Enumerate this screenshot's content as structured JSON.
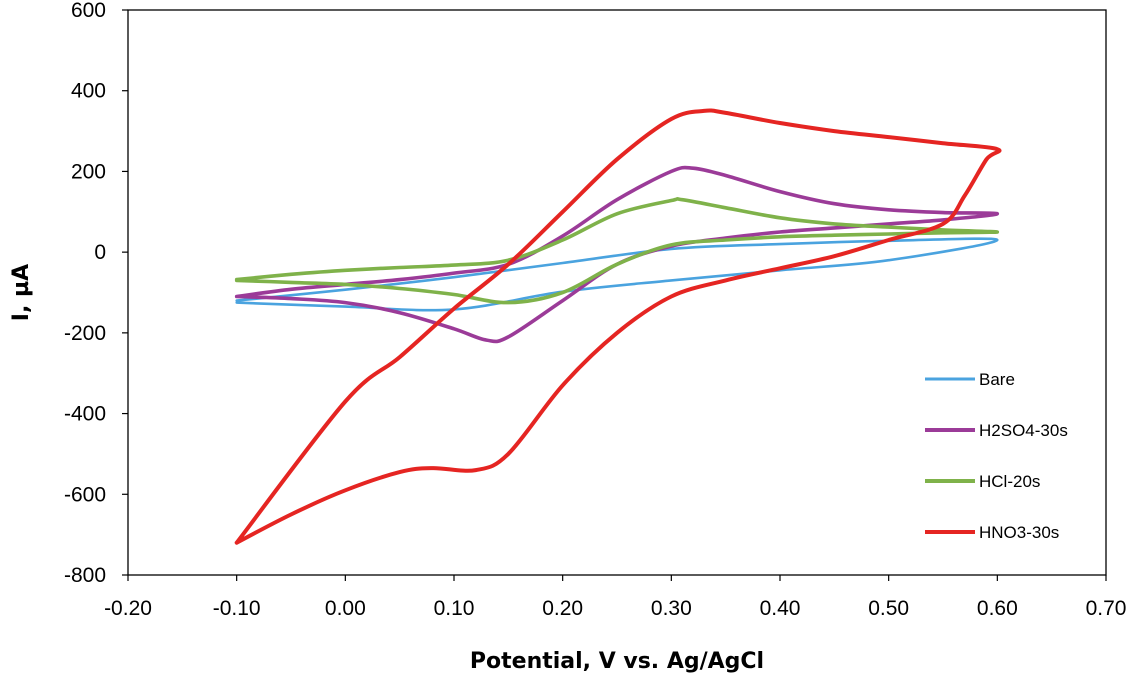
{
  "chart_data": {
    "type": "line",
    "title": "",
    "xlabel": "Potential, V vs. Ag/AgCl",
    "ylabel": "I, µA",
    "xlim": [
      -0.2,
      0.7
    ],
    "ylim": [
      -800,
      600
    ],
    "x_ticks": [
      "-0.20",
      "-0.10",
      "0.00",
      "0.10",
      "0.20",
      "0.30",
      "0.40",
      "0.50",
      "0.60",
      "0.70"
    ],
    "y_ticks": [
      "-800",
      "-600",
      "-400",
      "-200",
      "0",
      "200",
      "400",
      "600"
    ],
    "grid": false,
    "legend_position": "right",
    "series": [
      {
        "name": "Bare",
        "color": "#4aa3df",
        "x": [
          -0.1,
          0.0,
          0.1,
          0.2,
          0.3,
          0.4,
          0.5,
          0.6,
          0.5,
          0.4,
          0.3,
          0.2,
          0.1,
          0.0,
          -0.1
        ],
        "y": [
          -120,
          -93,
          -62,
          -27,
          8,
          20,
          28,
          30,
          -20,
          -45,
          -70,
          -98,
          -142,
          -135,
          -125
        ]
      },
      {
        "name": "H2SO4-30s",
        "color": "#9b3b98",
        "x": [
          -0.1,
          -0.05,
          0.0,
          0.05,
          0.1,
          0.15,
          0.2,
          0.25,
          0.3,
          0.32,
          0.35,
          0.4,
          0.45,
          0.5,
          0.55,
          0.6,
          0.55,
          0.5,
          0.45,
          0.4,
          0.35,
          0.3,
          0.25,
          0.2,
          0.15,
          0.13,
          0.1,
          0.05,
          0.0,
          -0.05,
          -0.1
        ],
        "y": [
          -110,
          -92,
          -80,
          -68,
          -52,
          -30,
          40,
          130,
          200,
          208,
          190,
          150,
          120,
          105,
          98,
          95,
          80,
          70,
          60,
          50,
          35,
          15,
          -30,
          -120,
          -210,
          -218,
          -190,
          -150,
          -125,
          -115,
          -110
        ]
      },
      {
        "name": "HCl-20s",
        "color": "#7fb24a",
        "x": [
          -0.1,
          -0.05,
          0.0,
          0.05,
          0.1,
          0.15,
          0.2,
          0.25,
          0.3,
          0.31,
          0.35,
          0.4,
          0.45,
          0.5,
          0.55,
          0.6,
          0.55,
          0.5,
          0.45,
          0.4,
          0.35,
          0.3,
          0.25,
          0.2,
          0.15,
          0.1,
          0.05,
          0.0,
          -0.05,
          -0.1
        ],
        "y": [
          -68,
          -55,
          -45,
          -38,
          -32,
          -20,
          30,
          95,
          128,
          130,
          110,
          85,
          70,
          62,
          55,
          50,
          48,
          45,
          42,
          38,
          30,
          18,
          -30,
          -100,
          -125,
          -105,
          -90,
          -80,
          -75,
          -70
        ]
      },
      {
        "name": "HNO3-30s",
        "color": "#e52522",
        "x": [
          -0.1,
          0.0,
          0.05,
          0.1,
          0.15,
          0.2,
          0.25,
          0.3,
          0.33,
          0.35,
          0.4,
          0.45,
          0.5,
          0.55,
          0.6,
          0.59,
          0.57,
          0.55,
          0.5,
          0.45,
          0.4,
          0.35,
          0.3,
          0.25,
          0.2,
          0.15,
          0.12,
          0.08,
          0.05,
          0.0,
          -0.05,
          -0.1
        ],
        "y": [
          -720,
          -370,
          -260,
          -140,
          -30,
          100,
          230,
          330,
          350,
          345,
          320,
          300,
          285,
          270,
          255,
          230,
          140,
          70,
          30,
          -10,
          -40,
          -70,
          -110,
          -200,
          -330,
          -500,
          -540,
          -535,
          -545,
          -590,
          -650,
          -720
        ]
      }
    ]
  }
}
